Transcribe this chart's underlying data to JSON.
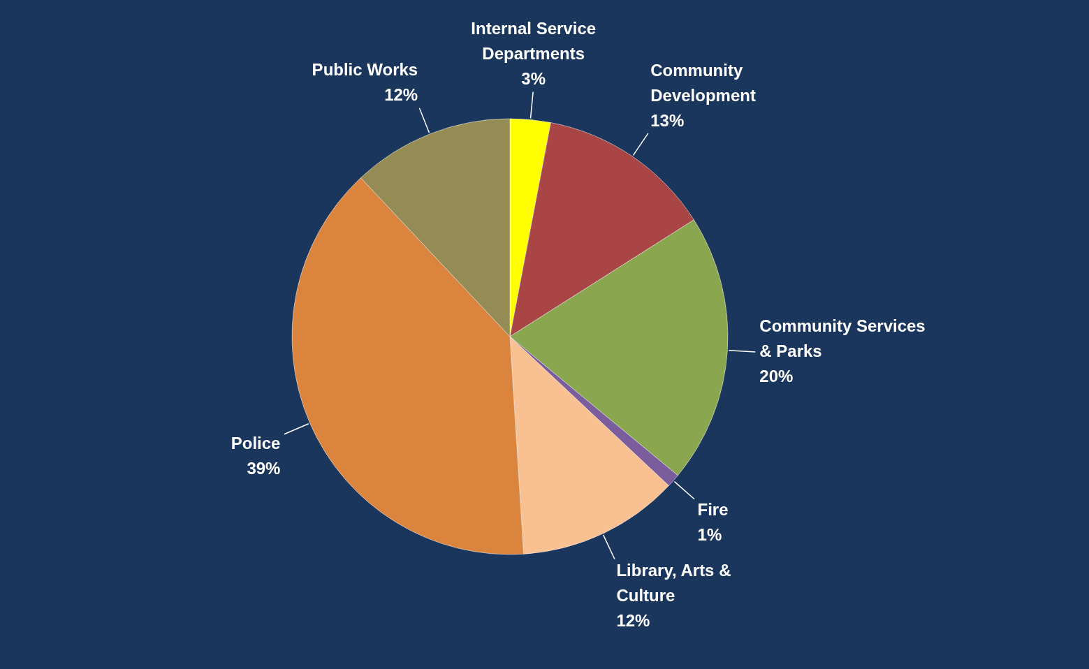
{
  "chart_data": {
    "type": "pie",
    "categories": [
      "Internal Service Departments",
      "Community Development",
      "Community Services & Parks",
      "Fire",
      "Library, Arts & Culture",
      "Police",
      "Public Works"
    ],
    "values": [
      3,
      13,
      20,
      1,
      12,
      39,
      12
    ],
    "value_labels": [
      "3%",
      "13%",
      "20%",
      "1%",
      "12%",
      "39%",
      "12%"
    ],
    "colors": [
      "#ffff00",
      "#a94545",
      "#8aa64e",
      "#7b5c9c",
      "#f9c091",
      "#db843d",
      "#958b55"
    ]
  }
}
